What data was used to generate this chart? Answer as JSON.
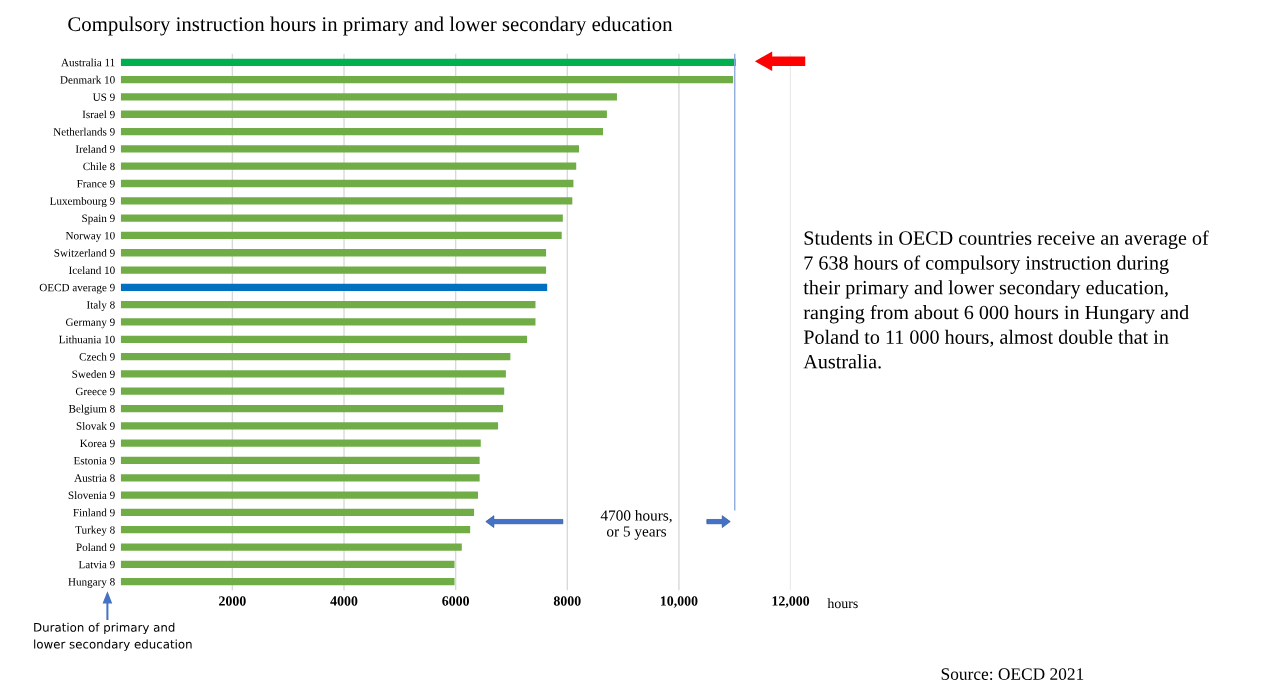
{
  "chart_data": {
    "type": "bar",
    "orientation": "horizontal",
    "title": "Compulsory instruction hours in primary and lower secondary education",
    "xlabel": "hours",
    "categories": [
      "Australia 11",
      "Denmark 10",
      "US 9",
      "Israel 9",
      "Netherlands 9",
      "Ireland 9",
      "Chile 8",
      "France 9",
      "Luxembourg 9",
      "Spain 9",
      "Norway 10",
      "Switzerland 9",
      "Iceland 10",
      "OECD average 9",
      "Italy 8",
      "Germany 9",
      "Lithuania 10",
      "Czech 9",
      "Sweden 9",
      "Greece 9",
      "Belgium 8",
      "Slovak 9",
      "Korea 9",
      "Estonia 9",
      "Austria 8",
      "Slovenia 9",
      "Finland 9",
      "Turkey 8",
      "Poland 9",
      "Latvia 9",
      "Hungary 8"
    ],
    "values": [
      11020,
      10970,
      8890,
      8710,
      8640,
      8210,
      8160,
      8110,
      8090,
      7920,
      7900,
      7620,
      7620,
      7640,
      7430,
      7430,
      7280,
      6980,
      6900,
      6870,
      6850,
      6760,
      6450,
      6430,
      6430,
      6400,
      6330,
      6260,
      6110,
      5980,
      5980
    ],
    "colors": [
      "#00b050",
      "#70ad47",
      "#70ad47",
      "#70ad47",
      "#70ad47",
      "#70ad47",
      "#70ad47",
      "#70ad47",
      "#70ad47",
      "#70ad47",
      "#70ad47",
      "#70ad47",
      "#70ad47",
      "#0070c0",
      "#70ad47",
      "#70ad47",
      "#70ad47",
      "#70ad47",
      "#70ad47",
      "#70ad47",
      "#70ad47",
      "#70ad47",
      "#70ad47",
      "#70ad47",
      "#70ad47",
      "#70ad47",
      "#70ad47",
      "#70ad47",
      "#70ad47",
      "#70ad47",
      "#70ad47"
    ],
    "xlim": [
      0,
      12000
    ],
    "xticks": [
      2000,
      4000,
      6000,
      8000,
      {
        "value": 10000,
        "label": "10,000"
      },
      {
        "value": 12000,
        "label": "12,000"
      }
    ],
    "grid": "x",
    "ref_lines": [
      {
        "axis": "x",
        "value": 11000,
        "color": "#8faadc"
      }
    ],
    "annotations": [
      "4700 hours,\nor 5 years",
      "Students in OECD countries receive an average of\n7 638 hours of compulsory instruction during\ntheir primary and lower secondary education,\nranging from about 6 000 hours in Hungary and\nPoland to 11 000 hours, almost double that in\nAustralia.",
      "Duration of primary and\nlower secondary education",
      "Source: OECD 2021"
    ]
  }
}
